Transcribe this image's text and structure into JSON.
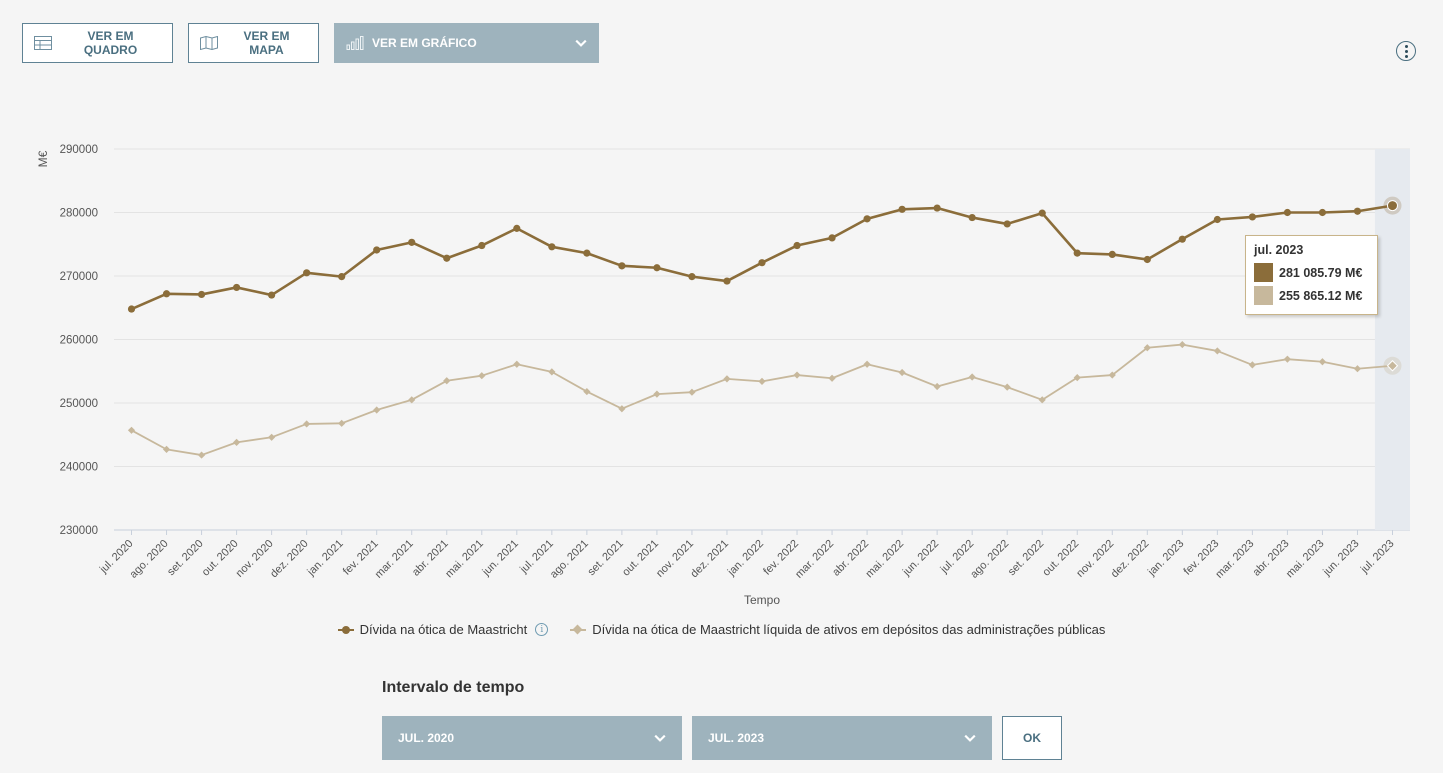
{
  "toolbar": {
    "table_label": "VER EM QUADRO",
    "map_label": "VER EM MAPA",
    "chart_label": "VER EM GRÁFICO"
  },
  "tooltip": {
    "title": "jul. 2023",
    "value1": "281 085.79 M€",
    "value2": "255 865.12 M€"
  },
  "legend": {
    "series1": "Dívida na ótica de Maastricht",
    "series2": "Dívida na ótica de Maastricht líquida de ativos em depósitos das administrações públicas",
    "info_glyph": "i"
  },
  "interval": {
    "title": "Intervalo de tempo",
    "start": "JUL. 2020",
    "end": "JUL. 2023",
    "ok_label": "OK"
  },
  "chart_data": {
    "type": "line",
    "ylabel": "M€",
    "xlabel": "Tempo",
    "ylim": [
      230000,
      290000
    ],
    "yticks": [
      230000,
      240000,
      250000,
      260000,
      270000,
      280000,
      290000
    ],
    "ytick_labels": [
      "230000",
      "240000",
      "250000",
      "260000",
      "270000",
      "280000",
      "290000"
    ],
    "grid": true,
    "legend_position": "bottom",
    "highlighted_category": "jul. 2023",
    "categories": [
      "jul. 2020",
      "ago. 2020",
      "set. 2020",
      "out. 2020",
      "nov. 2020",
      "dez. 2020",
      "jan. 2021",
      "fev. 2021",
      "mar. 2021",
      "abr. 2021",
      "mai. 2021",
      "jun. 2021",
      "jul. 2021",
      "ago. 2021",
      "set. 2021",
      "out. 2021",
      "nov. 2021",
      "dez. 2021",
      "jan. 2022",
      "fev. 2022",
      "mar. 2022",
      "abr. 2022",
      "mai. 2022",
      "jun. 2022",
      "jul. 2022",
      "ago. 2022",
      "set. 2022",
      "out. 2022",
      "nov. 2022",
      "dez. 2022",
      "jan. 2023",
      "fev. 2023",
      "mar. 2023",
      "abr. 2023",
      "mai. 2023",
      "jun. 2023",
      "jul. 2023"
    ],
    "series": [
      {
        "name": "Dívida na ótica de Maastricht",
        "color": "#8b6d3a",
        "marker": "circle",
        "values": [
          264800,
          267200,
          267100,
          268200,
          267000,
          270500,
          269900,
          274100,
          275300,
          272800,
          274800,
          277500,
          274600,
          273600,
          271600,
          271300,
          269900,
          269200,
          272100,
          274800,
          276000,
          279000,
          280500,
          280700,
          279200,
          278200,
          279900,
          273600,
          273400,
          272600,
          275800,
          278900,
          279300,
          280000,
          280000,
          280200,
          281085.79
        ]
      },
      {
        "name": "Dívida na ótica de Maastricht líquida de ativos em depósitos das administrações públicas",
        "color": "#c7b89c",
        "marker": "diamond",
        "values": [
          245700,
          242700,
          241800,
          243800,
          244600,
          246700,
          246800,
          248900,
          250500,
          253500,
          254300,
          256100,
          254900,
          251800,
          249100,
          251400,
          251700,
          253800,
          253400,
          254400,
          253900,
          256100,
          254800,
          252600,
          254100,
          252500,
          250500,
          254000,
          254400,
          258700,
          259200,
          258200,
          256000,
          256900,
          256500,
          255400,
          255865.12
        ]
      }
    ]
  }
}
